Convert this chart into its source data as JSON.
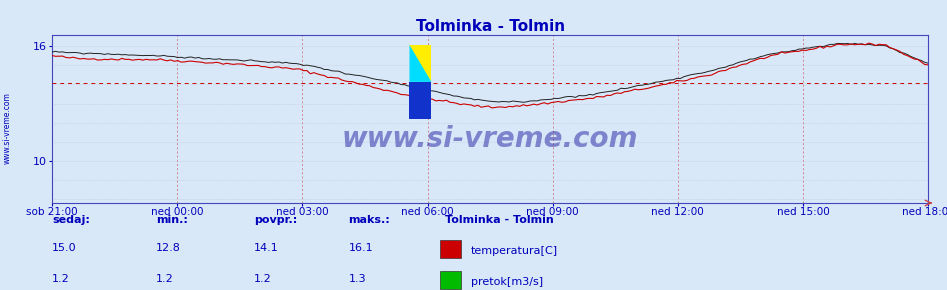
{
  "title": "Tolminka - Tolmin",
  "title_color": "#0000bb",
  "bg_color": "#d8e8f8",
  "plot_bg_color": "#d8e8f8",
  "ylim": [
    7.8,
    16.6
  ],
  "yticks": [
    10,
    16
  ],
  "x_labels": [
    "sob 21:00",
    "ned 00:00",
    "ned 03:00",
    "ned 06:00",
    "ned 09:00",
    "ned 12:00",
    "ned 15:00",
    "ned 18:00"
  ],
  "avg_line_value": 14.1,
  "avg_line_color": "#cc0000",
  "temp_color": "#cc0000",
  "temp2_color": "#222222",
  "flow_color": "#00bb00",
  "temp_sedaj": 15.0,
  "temp_min": 12.8,
  "temp_avg": 14.1,
  "temp_max": 16.1,
  "flow_sedaj": 1.2,
  "flow_min": 1.2,
  "flow_avg": 1.2,
  "flow_max": 1.3,
  "watermark": "www.si-vreme.com",
  "watermark_color": "#3333aa",
  "legend_title": "Tolminka - Tolmin",
  "legend_items": [
    "temperatura[C]",
    "pretok[m3/s]"
  ],
  "legend_colors": [
    "#cc0000",
    "#00bb00"
  ],
  "label_color": "#0000bb",
  "grid_color_v": "#cc6666",
  "grid_color_h": "#bbbbcc",
  "axis_color": "#4444bb",
  "n_points": 252
}
